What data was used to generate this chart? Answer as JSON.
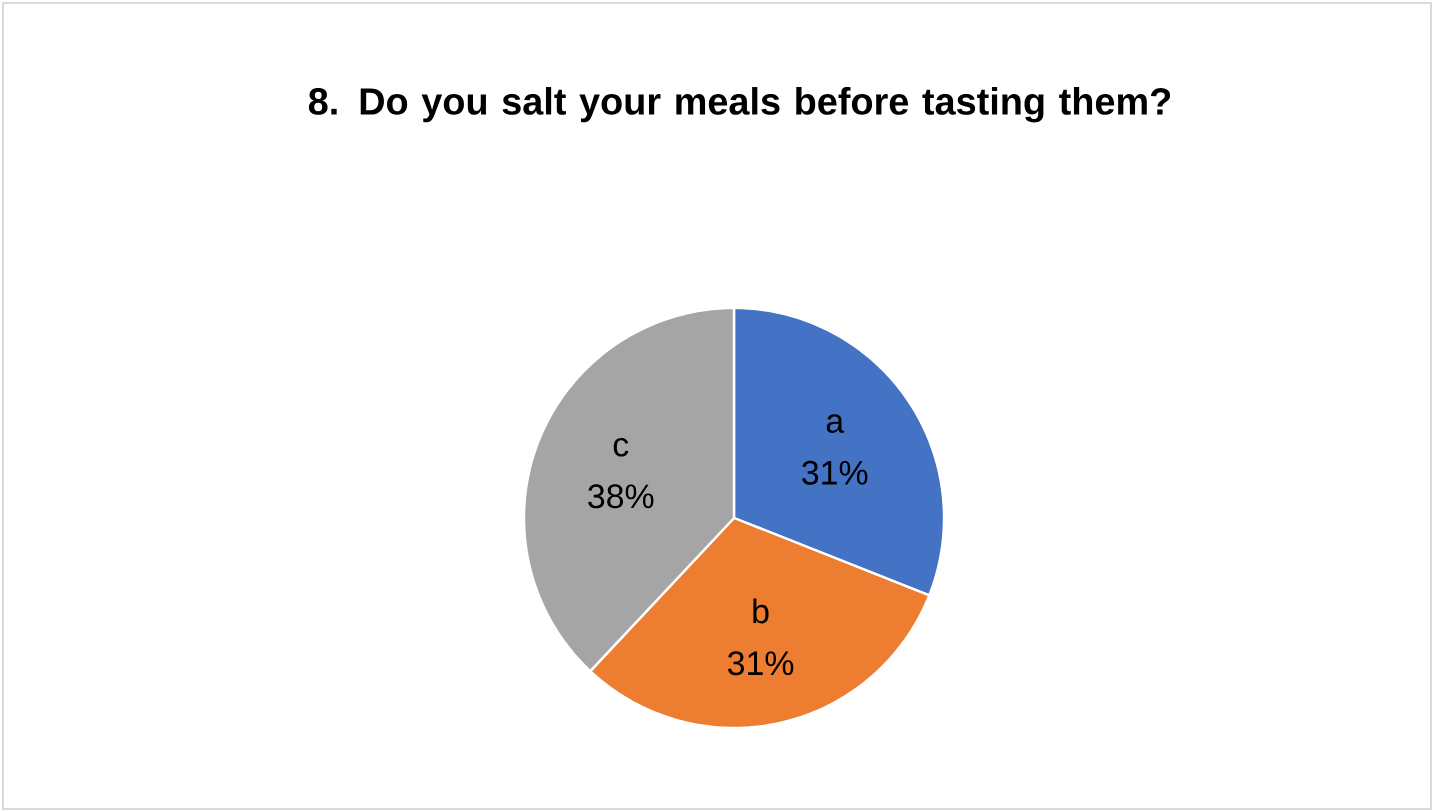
{
  "chart_data": {
    "type": "pie",
    "title": "8. Do you salt your meals before tasting them?",
    "categories": [
      "a",
      "b",
      "c"
    ],
    "values": [
      31,
      31,
      38
    ],
    "colors": [
      "#4472c4",
      "#ed7d31",
      "#a5a5a5"
    ],
    "data_labels": true,
    "value_labels": [
      "31%",
      "31%",
      "38%"
    ]
  }
}
